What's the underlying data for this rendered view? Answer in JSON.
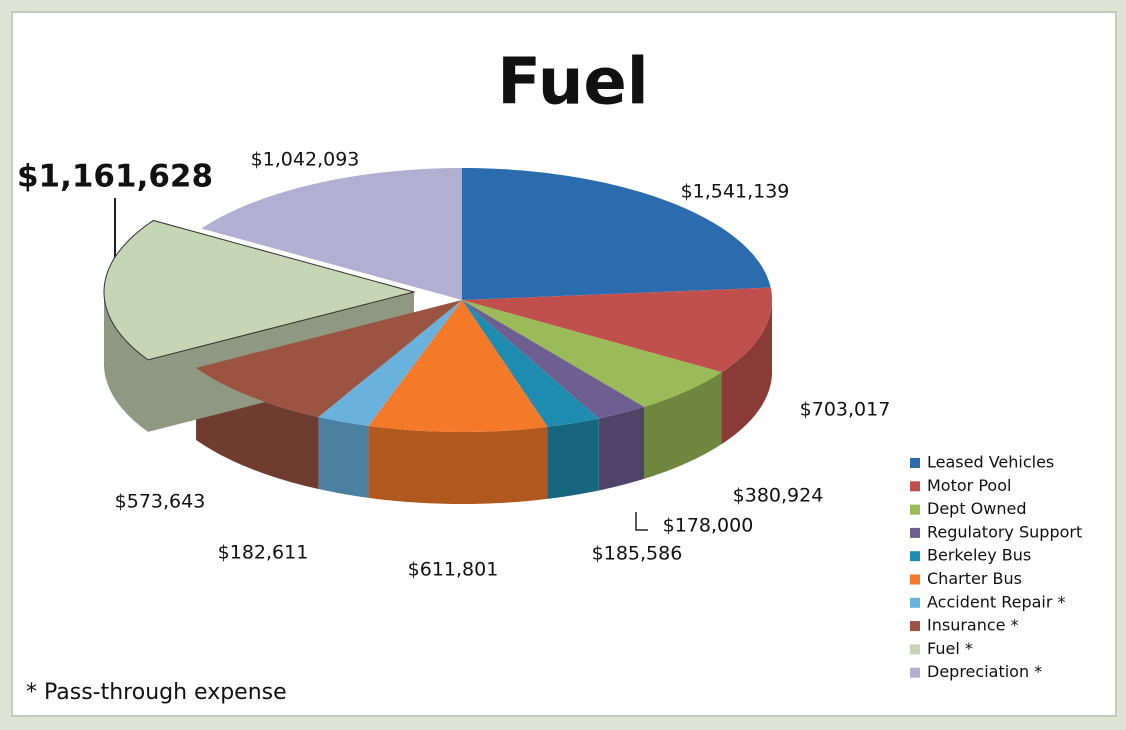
{
  "chart_data": {
    "type": "pie",
    "title": "Fuel",
    "categories": [
      "Leased Vehicles",
      "Motor Pool",
      "Dept Owned",
      "Regulatory Support",
      "Berkeley Bus",
      "Charter Bus",
      "Accident Repair *",
      "Insurance *",
      "Fuel *",
      "Depreciation *"
    ],
    "values": [
      1541139,
      703017,
      380924,
      178000,
      185586,
      611801,
      182611,
      573643,
      1161628,
      1042093
    ],
    "value_labels": [
      "$1,541,139",
      "$703,017",
      "$380,924",
      "$178,000",
      "$185,586",
      "$611,801",
      "$182,611",
      "$573,643",
      "$1,161,628",
      "$1,042,093"
    ],
    "colors": [
      "#2b6cae",
      "#c0504d",
      "#9bbb59",
      "#6e5f91",
      "#1f8db0",
      "#f47a2a",
      "#6ab2de",
      "#9a5441",
      "#c6d5b3",
      "#b1afd2"
    ],
    "legend": "right",
    "footnote": "* Pass-through expense"
  }
}
